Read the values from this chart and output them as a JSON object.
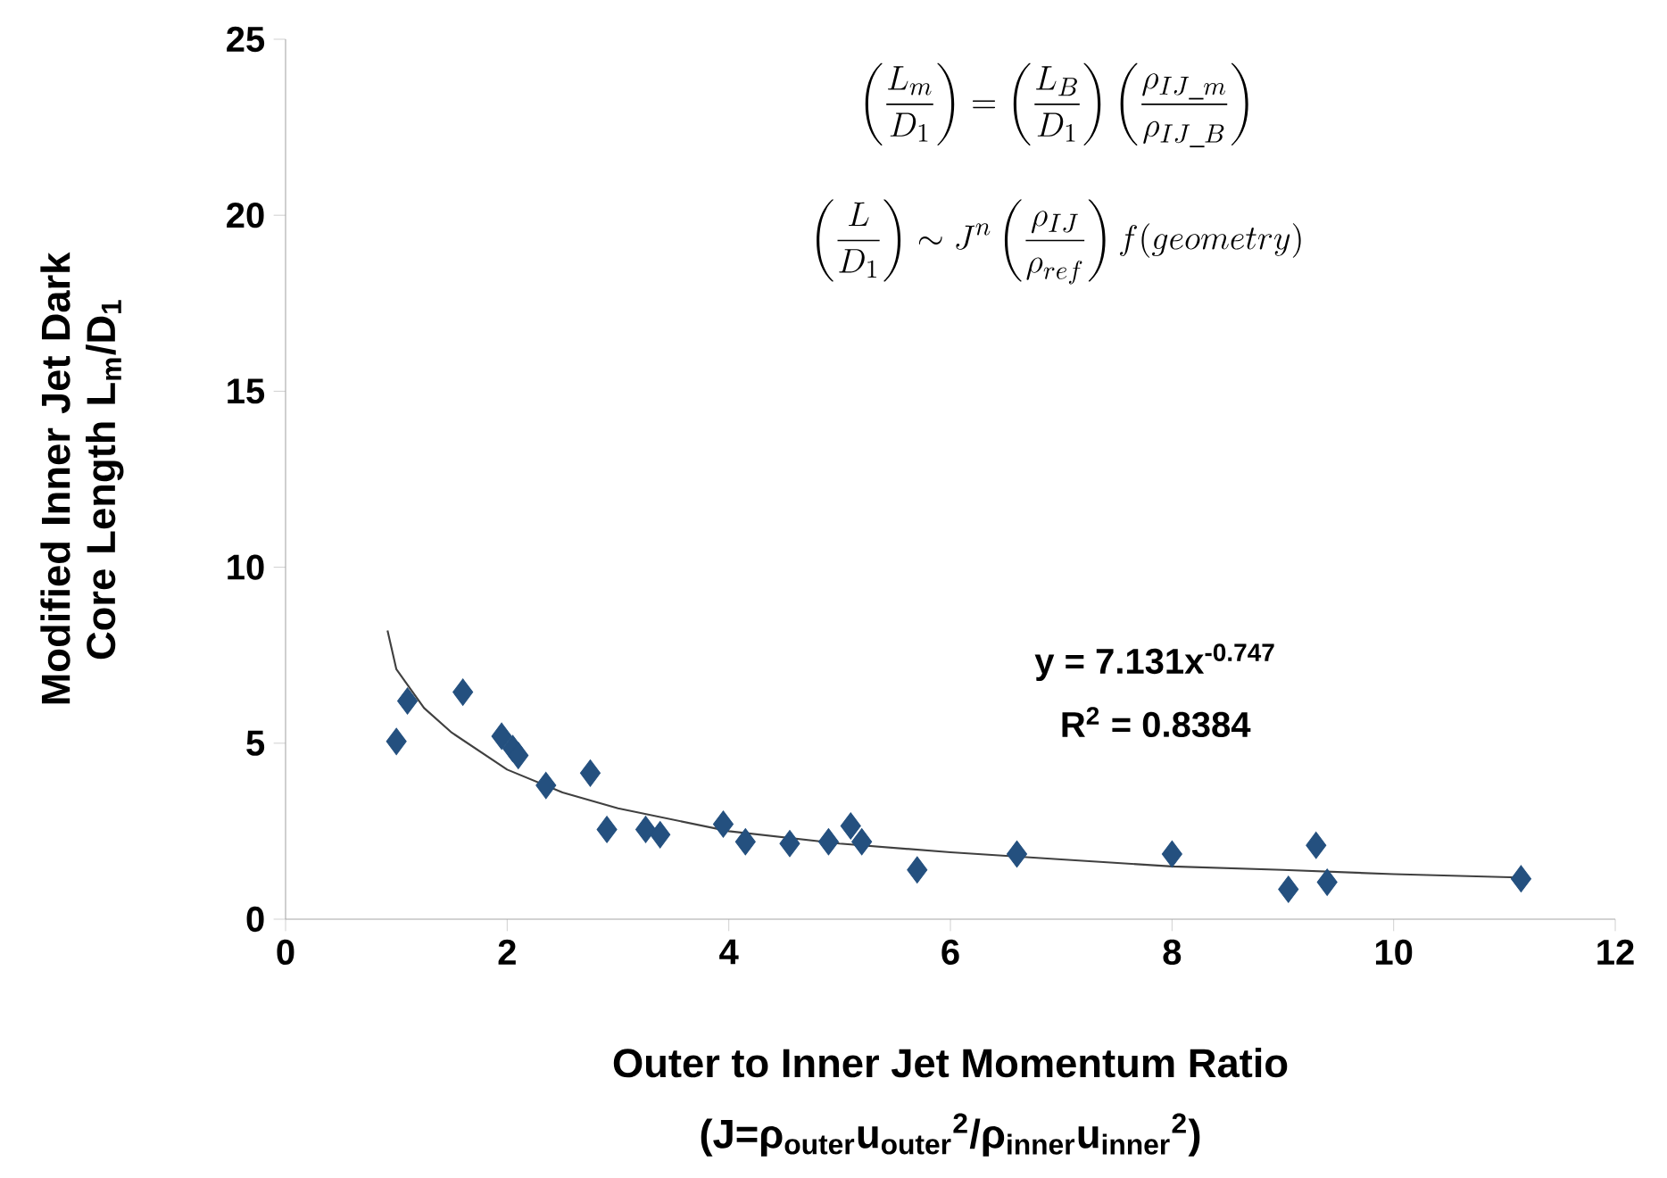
{
  "chart_data": {
    "type": "scatter",
    "xlabel": "Outer to Inner Jet Momentum Ratio",
    "ylabel": "Modified Inner Jet Dark Core Length L$_{m}$/D$_{1}$",
    "xlim": [
      0,
      12
    ],
    "xticks": [
      0,
      2,
      4,
      6,
      8,
      10,
      12
    ],
    "ylim": [
      0,
      25
    ],
    "yticks": [
      0,
      5,
      10,
      15,
      20,
      25
    ],
    "series": [
      {
        "color": "#24507f",
        "marker": "diamond",
        "x": [
          1.0,
          1.1,
          1.6,
          1.95,
          2.05,
          2.1,
          2.35,
          2.75,
          2.9,
          3.25,
          3.38,
          3.95,
          4.15,
          4.55,
          4.9,
          5.1,
          5.2,
          5.7,
          6.6,
          8.0,
          9.05,
          9.3,
          9.4,
          11.15
        ],
        "values": [
          5.05,
          6.2,
          6.45,
          5.2,
          4.85,
          4.65,
          3.8,
          4.15,
          2.55,
          2.55,
          2.4,
          2.7,
          2.2,
          2.15,
          2.2,
          2.65,
          2.2,
          1.4,
          1.85,
          1.85,
          0.85,
          2.1,
          1.05,
          1.15
        ]
      },
      {
        "type": "line",
        "color": "#404040",
        "marker": "none",
        "line_style": "solid",
        "x": [
          0.92,
          1.0,
          1.25,
          1.5,
          2.0,
          2.5,
          3.0,
          4.0,
          5.0,
          6.0,
          7.0,
          8.0,
          9.0,
          10.0,
          11.2
        ],
        "values": [
          8.2,
          7.1,
          6.0,
          5.3,
          4.25,
          3.6,
          3.15,
          2.5,
          2.15,
          1.9,
          1.7,
          1.5,
          1.4,
          1.28,
          1.18
        ]
      }
    ],
    "annotations": [
      "\\left(\\frac{L_m}{D_1}\\right)=\\left(\\frac{L_B}{D_1}\\right)\\left(\\frac{\\rho_{IJ\\_m}}{\\rho_{IJ\\_B}}\\right)",
      "\\left(\\frac{L}{D_1}\\right)\\sim J^n\\left(\\frac{\\rho_{IJ}}{\\rho_{ref}}\\right)f(geometry)",
      "y = 7.131x$^{-0.747}$",
      "R$^{2}$ = 0.8384",
      "(J=ρ$_{outer}$u$_{outer}$$^{2}$/ρ$_{inner}$u$_{inner}$$^{2}$)"
    ]
  }
}
